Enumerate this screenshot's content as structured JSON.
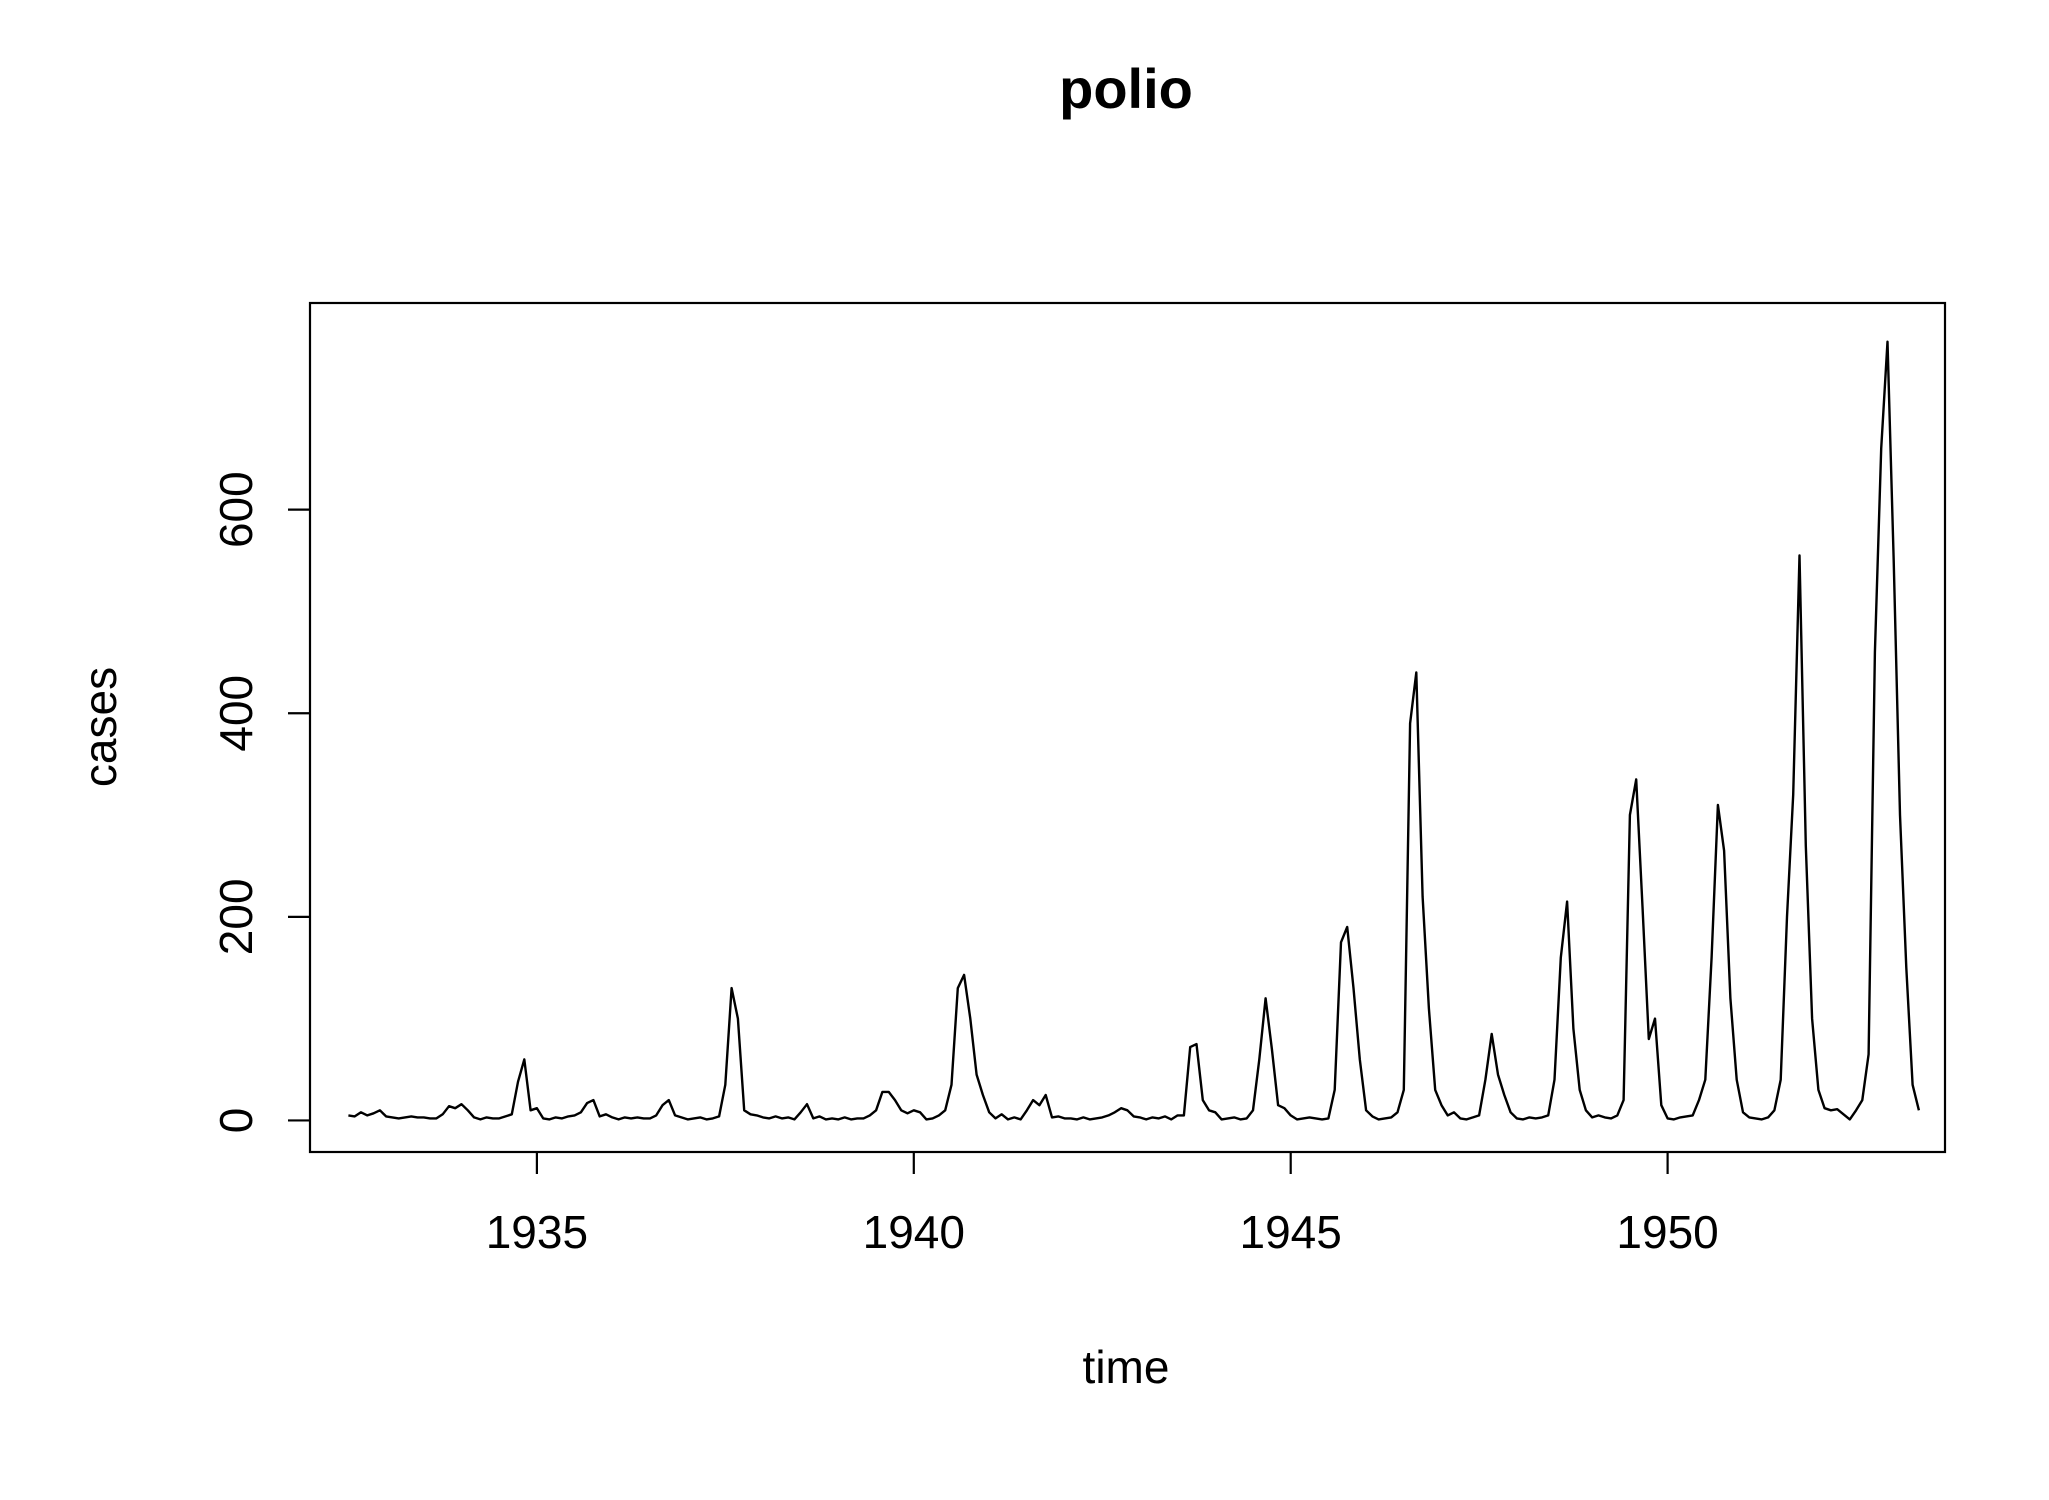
{
  "chart_data": {
    "type": "line",
    "title": "polio",
    "xlabel": "time",
    "ylabel": "cases",
    "xlim": [
      1931.99,
      1953.68
    ],
    "ylim": [
      -31,
      803
    ],
    "x_ticks": [
      1935,
      1940,
      1945,
      1950
    ],
    "x_tick_labels": [
      "1935",
      "1940",
      "1945",
      "1950"
    ],
    "y_ticks": [
      0,
      200,
      400,
      600
    ],
    "y_tick_labels": [
      "0",
      "200",
      "400",
      "600"
    ],
    "grid": false,
    "series": [
      {
        "name": "polio",
        "x_start": 1932.5,
        "x_step": 0.0833333,
        "values": [
          5,
          4,
          8,
          5,
          7,
          10,
          4,
          3,
          2,
          3,
          4,
          3,
          3,
          2,
          2,
          6,
          14,
          12,
          16,
          10,
          3,
          1,
          3,
          2,
          2,
          4,
          6,
          38,
          60,
          10,
          12,
          2,
          1,
          3,
          2,
          4,
          5,
          8,
          17,
          20,
          4,
          6,
          3,
          1,
          3,
          2,
          3,
          2,
          2,
          5,
          15,
          20,
          5,
          3,
          1,
          2,
          3,
          1,
          2,
          4,
          35,
          130,
          100,
          10,
          6,
          5,
          3,
          2,
          4,
          2,
          3,
          1,
          8,
          16,
          2,
          4,
          1,
          2,
          1,
          3,
          1,
          2,
          2,
          5,
          10,
          28,
          28,
          20,
          10,
          7,
          10,
          8,
          1,
          2,
          5,
          10,
          35,
          130,
          143,
          100,
          45,
          25,
          8,
          2,
          6,
          1,
          3,
          1,
          10,
          20,
          15,
          25,
          3,
          4,
          2,
          2,
          1,
          3,
          1,
          2,
          3,
          5,
          8,
          12,
          10,
          4,
          3,
          1,
          3,
          2,
          4,
          1,
          5,
          5,
          72,
          75,
          20,
          10,
          8,
          1,
          2,
          3,
          1,
          2,
          10,
          60,
          120,
          70,
          15,
          12,
          5,
          1,
          2,
          3,
          2,
          1,
          2,
          30,
          175,
          190,
          130,
          60,
          10,
          4,
          1,
          2,
          3,
          8,
          30,
          390,
          440,
          220,
          110,
          30,
          15,
          5,
          8,
          2,
          1,
          3,
          5,
          40,
          85,
          45,
          25,
          8,
          2,
          1,
          3,
          2,
          3,
          5,
          40,
          160,
          215,
          90,
          30,
          10,
          3,
          5,
          3,
          2,
          5,
          20,
          300,
          335,
          210,
          80,
          100,
          15,
          2,
          1,
          3,
          4,
          5,
          20,
          40,
          160,
          310,
          265,
          120,
          40,
          8,
          3,
          2,
          1,
          3,
          10,
          40,
          200,
          320,
          555,
          270,
          100,
          30,
          12,
          10,
          11,
          6,
          1,
          10,
          20,
          65,
          460,
          660,
          765,
          550,
          300,
          150,
          35,
          10
        ]
      }
    ]
  }
}
